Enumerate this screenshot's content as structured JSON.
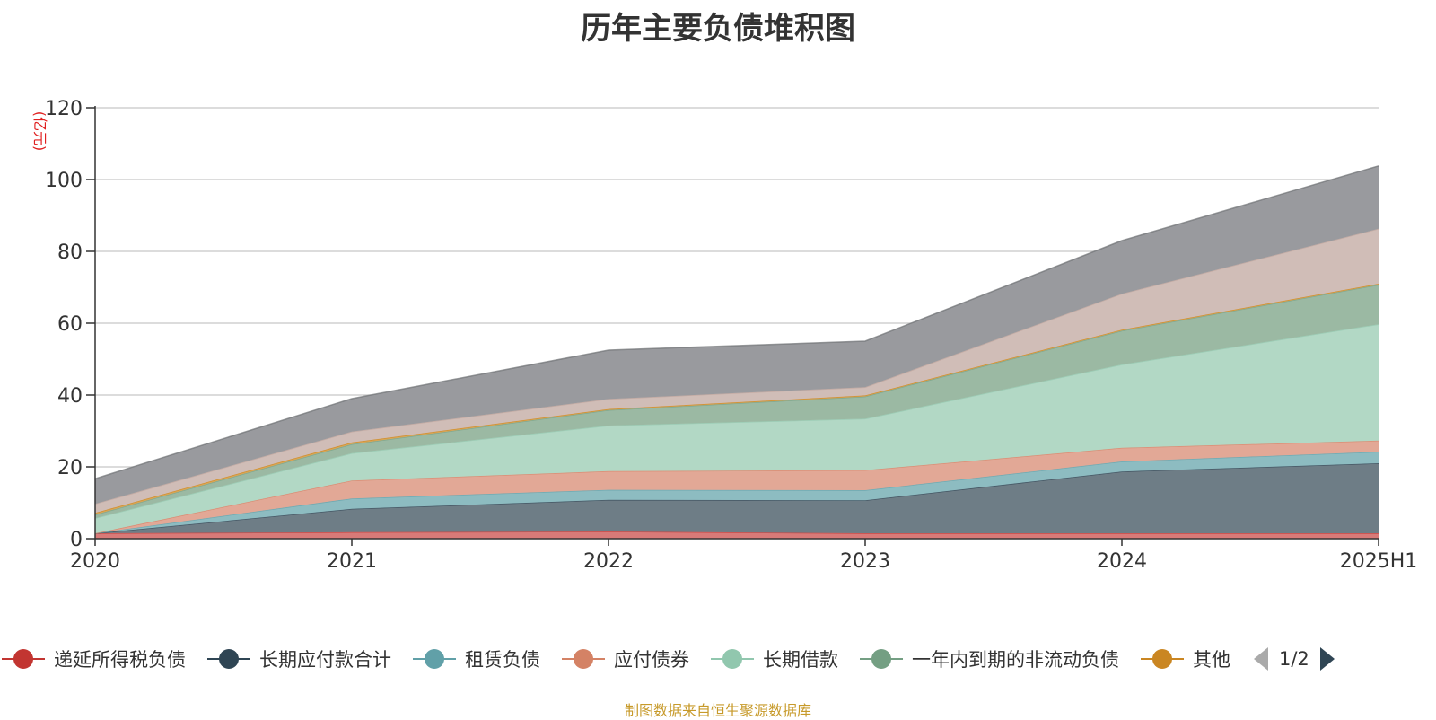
{
  "title": "历年主要负债堆积图",
  "source_note": "制图数据来自恒生聚源数据库",
  "pager": {
    "text": "1/2"
  },
  "chart_data": {
    "type": "area",
    "stacked": true,
    "title": "历年主要负债堆积图",
    "ylabel": "(亿元)",
    "ylabel_color": "#e02020",
    "categories": [
      "2020",
      "2021",
      "2022",
      "2023",
      "2024",
      "2025H1"
    ],
    "ylim": [
      0,
      120
    ],
    "yticks": [
      0,
      20,
      40,
      60,
      80,
      100,
      120
    ],
    "grid": true,
    "legend_position": "bottom",
    "series": [
      {
        "name": "递延所得税负债",
        "color": "#c23531",
        "fill": "#d87a78",
        "values": [
          1.5,
          1.8,
          2.0,
          1.5,
          1.5,
          1.5
        ]
      },
      {
        "name": "长期应付款合计",
        "color": "#2f4554",
        "fill": "#6e7d86",
        "values": [
          0.0,
          6.5,
          8.8,
          9.2,
          17.2,
          19.5
        ]
      },
      {
        "name": "租赁负债",
        "color": "#61a0a8",
        "fill": "#8dbcc1",
        "values": [
          0.0,
          2.9,
          2.8,
          2.8,
          2.8,
          3.2
        ]
      },
      {
        "name": "应付债券",
        "color": "#d48265",
        "fill": "#e2a896",
        "values": [
          0.0,
          5.0,
          5.2,
          5.6,
          3.8,
          3.1
        ]
      },
      {
        "name": "长期借款",
        "color": "#91c7ae",
        "fill": "#b2d8c5",
        "values": [
          4.2,
          7.6,
          12.7,
          14.3,
          23.2,
          32.4
        ]
      },
      {
        "name": "一年内到期的非流动负债",
        "color": "#749f83",
        "fill": "#9bb9a3",
        "values": [
          1.0,
          2.5,
          4.3,
          6.2,
          9.4,
          11.0
        ]
      },
      {
        "name": "其他",
        "color": "#ca8622",
        "fill": "#d9a555",
        "values": [
          0.5,
          0.5,
          0.3,
          0.3,
          0.3,
          0.3
        ]
      },
      {
        "name": "",
        "color": "#bda29a",
        "fill": "#d0bdb7",
        "values": [
          2.5,
          3.0,
          2.8,
          2.3,
          10.0,
          15.3
        ]
      },
      {
        "name": "",
        "color": "#6e7074",
        "fill": "#999a9e",
        "values": [
          7.0,
          9.2,
          13.6,
          12.8,
          14.8,
          17.5
        ]
      }
    ]
  }
}
